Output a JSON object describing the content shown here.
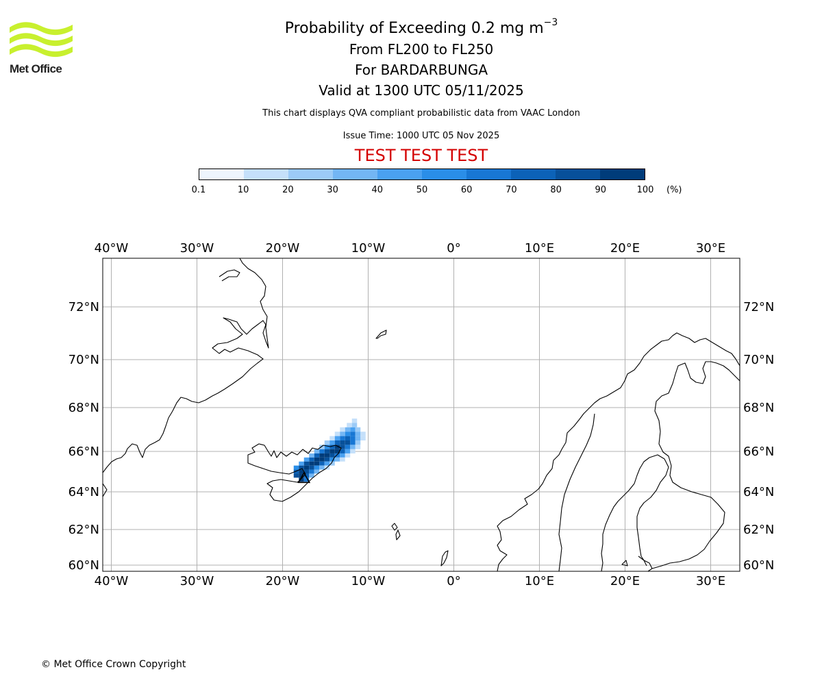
{
  "logo": {
    "text": "Met Office",
    "brand_color": "#c8f02e"
  },
  "title": {
    "main_prefix": "Probability of Exceeding 0.2 mg m",
    "main_superscript": "−3",
    "levels": "From FL200 to FL250",
    "volcano": "For BARDARBUNGA",
    "valid": "Valid at 1300 UTC 05/11/2025"
  },
  "subtitle": "This chart displays QVA compliant probabilistic data from VAAC London",
  "issue_time": "Issue Time: 1000 UTC 05 Nov 2025",
  "test_banner": "TEST TEST TEST",
  "colorbar": {
    "unit": "(%)",
    "tick_labels": [
      "0.1",
      "10",
      "20",
      "30",
      "40",
      "50",
      "60",
      "70",
      "80",
      "90",
      "100"
    ],
    "colors": [
      "#eef5fd",
      "#c5e0fa",
      "#9ccbf7",
      "#73b6f4",
      "#4aa1f1",
      "#2a8ee8",
      "#1877d4",
      "#0c62b8",
      "#07509a",
      "#003c7a"
    ]
  },
  "map": {
    "lon_labels": [
      "40°W",
      "30°W",
      "20°W",
      "10°W",
      "0°",
      "10°E",
      "20°E",
      "30°E"
    ],
    "lon_values": [
      -40,
      -30,
      -20,
      -10,
      0,
      10,
      20,
      30
    ],
    "lat_labels": [
      "72°N",
      "70°N",
      "68°N",
      "66°N",
      "64°N",
      "62°N",
      "60°N"
    ],
    "lat_values": [
      72,
      70,
      68,
      66,
      64,
      62,
      60
    ],
    "extent_lon": [
      -41,
      33.4
    ],
    "extent_lat": [
      59.7,
      74.2
    ],
    "volcano_marker": {
      "lon": -17.5,
      "lat": 64.6
    },
    "probability_cells": [
      {
        "lon": -11.6,
        "lat": 67.4,
        "p": 12
      },
      {
        "lon": -12.2,
        "lat": 67.2,
        "p": 10
      },
      {
        "lon": -11.6,
        "lat": 67.2,
        "p": 25
      },
      {
        "lon": -13.0,
        "lat": 67.0,
        "p": 15
      },
      {
        "lon": -12.4,
        "lat": 67.0,
        "p": 30
      },
      {
        "lon": -11.8,
        "lat": 67.0,
        "p": 45
      },
      {
        "lon": -11.2,
        "lat": 67.0,
        "p": 20
      },
      {
        "lon": -13.6,
        "lat": 66.8,
        "p": 12
      },
      {
        "lon": -13.0,
        "lat": 66.8,
        "p": 35
      },
      {
        "lon": -12.4,
        "lat": 66.8,
        "p": 55
      },
      {
        "lon": -11.8,
        "lat": 66.8,
        "p": 60
      },
      {
        "lon": -11.2,
        "lat": 66.8,
        "p": 30
      },
      {
        "lon": -10.6,
        "lat": 66.8,
        "p": 10
      },
      {
        "lon": -14.2,
        "lat": 66.6,
        "p": 15
      },
      {
        "lon": -13.6,
        "lat": 66.6,
        "p": 40
      },
      {
        "lon": -13.0,
        "lat": 66.6,
        "p": 65
      },
      {
        "lon": -12.4,
        "lat": 66.6,
        "p": 75
      },
      {
        "lon": -11.8,
        "lat": 66.6,
        "p": 65
      },
      {
        "lon": -11.2,
        "lat": 66.6,
        "p": 35
      },
      {
        "lon": -10.6,
        "lat": 66.6,
        "p": 12
      },
      {
        "lon": -14.8,
        "lat": 66.4,
        "p": 20
      },
      {
        "lon": -14.2,
        "lat": 66.4,
        "p": 45
      },
      {
        "lon": -13.6,
        "lat": 66.4,
        "p": 70
      },
      {
        "lon": -13.0,
        "lat": 66.4,
        "p": 85
      },
      {
        "lon": -12.4,
        "lat": 66.4,
        "p": 80
      },
      {
        "lon": -11.8,
        "lat": 66.4,
        "p": 60
      },
      {
        "lon": -11.2,
        "lat": 66.4,
        "p": 25
      },
      {
        "lon": -15.4,
        "lat": 66.2,
        "p": 25
      },
      {
        "lon": -14.8,
        "lat": 66.2,
        "p": 50
      },
      {
        "lon": -14.2,
        "lat": 66.2,
        "p": 75
      },
      {
        "lon": -13.6,
        "lat": 66.2,
        "p": 90
      },
      {
        "lon": -13.0,
        "lat": 66.2,
        "p": 85
      },
      {
        "lon": -12.4,
        "lat": 66.2,
        "p": 65
      },
      {
        "lon": -11.8,
        "lat": 66.2,
        "p": 35
      },
      {
        "lon": -11.2,
        "lat": 66.2,
        "p": 12
      },
      {
        "lon": -16.0,
        "lat": 66.0,
        "p": 30
      },
      {
        "lon": -15.4,
        "lat": 66.0,
        "p": 60
      },
      {
        "lon": -14.8,
        "lat": 66.0,
        "p": 85
      },
      {
        "lon": -14.2,
        "lat": 66.0,
        "p": 95
      },
      {
        "lon": -13.6,
        "lat": 66.0,
        "p": 90
      },
      {
        "lon": -13.0,
        "lat": 66.0,
        "p": 70
      },
      {
        "lon": -12.4,
        "lat": 66.0,
        "p": 45
      },
      {
        "lon": -11.8,
        "lat": 66.0,
        "p": 15
      },
      {
        "lon": -16.6,
        "lat": 65.8,
        "p": 35
      },
      {
        "lon": -16.0,
        "lat": 65.8,
        "p": 70
      },
      {
        "lon": -15.4,
        "lat": 65.8,
        "p": 90
      },
      {
        "lon": -14.8,
        "lat": 65.8,
        "p": 95
      },
      {
        "lon": -14.2,
        "lat": 65.8,
        "p": 85
      },
      {
        "lon": -13.6,
        "lat": 65.8,
        "p": 65
      },
      {
        "lon": -13.0,
        "lat": 65.8,
        "p": 40
      },
      {
        "lon": -12.4,
        "lat": 65.8,
        "p": 15
      },
      {
        "lon": -17.2,
        "lat": 65.6,
        "p": 40
      },
      {
        "lon": -16.6,
        "lat": 65.6,
        "p": 75
      },
      {
        "lon": -16.0,
        "lat": 65.6,
        "p": 92
      },
      {
        "lon": -15.4,
        "lat": 65.6,
        "p": 95
      },
      {
        "lon": -14.8,
        "lat": 65.6,
        "p": 80
      },
      {
        "lon": -14.2,
        "lat": 65.6,
        "p": 55
      },
      {
        "lon": -13.6,
        "lat": 65.6,
        "p": 30
      },
      {
        "lon": -13.0,
        "lat": 65.6,
        "p": 12
      },
      {
        "lon": -17.8,
        "lat": 65.4,
        "p": 45
      },
      {
        "lon": -17.2,
        "lat": 65.4,
        "p": 80
      },
      {
        "lon": -16.6,
        "lat": 65.4,
        "p": 95
      },
      {
        "lon": -16.0,
        "lat": 65.4,
        "p": 90
      },
      {
        "lon": -15.4,
        "lat": 65.4,
        "p": 70
      },
      {
        "lon": -14.8,
        "lat": 65.4,
        "p": 45
      },
      {
        "lon": -14.2,
        "lat": 65.4,
        "p": 20
      },
      {
        "lon": -18.4,
        "lat": 65.2,
        "p": 50
      },
      {
        "lon": -17.8,
        "lat": 65.2,
        "p": 85
      },
      {
        "lon": -17.2,
        "lat": 65.2,
        "p": 95
      },
      {
        "lon": -16.6,
        "lat": 65.2,
        "p": 80
      },
      {
        "lon": -16.0,
        "lat": 65.2,
        "p": 55
      },
      {
        "lon": -15.4,
        "lat": 65.2,
        "p": 30
      },
      {
        "lon": -14.8,
        "lat": 65.2,
        "p": 12
      },
      {
        "lon": -18.4,
        "lat": 65.0,
        "p": 75
      },
      {
        "lon": -17.8,
        "lat": 65.0,
        "p": 95
      },
      {
        "lon": -17.2,
        "lat": 65.0,
        "p": 85
      },
      {
        "lon": -16.6,
        "lat": 65.0,
        "p": 60
      },
      {
        "lon": -16.0,
        "lat": 65.0,
        "p": 30
      },
      {
        "lon": -18.4,
        "lat": 64.8,
        "p": 85
      },
      {
        "lon": -17.8,
        "lat": 64.8,
        "p": 95
      },
      {
        "lon": -17.2,
        "lat": 64.8,
        "p": 70
      },
      {
        "lon": -16.6,
        "lat": 64.8,
        "p": 35
      },
      {
        "lon": -17.8,
        "lat": 64.6,
        "p": 95
      },
      {
        "lon": -17.2,
        "lat": 64.6,
        "p": 60
      }
    ]
  }
}
